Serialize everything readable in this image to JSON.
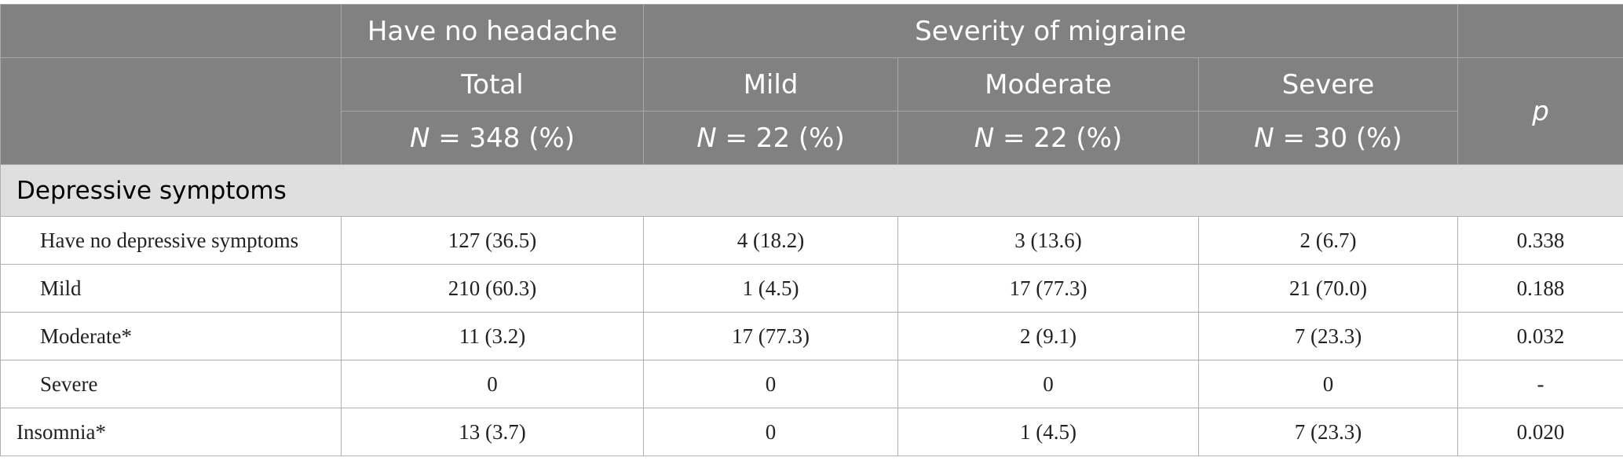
{
  "header": {
    "group_row": [
      "Have no headache",
      "Severity of migraine"
    ],
    "columns": [
      "Total",
      "Mild",
      "Moderate",
      "Severe",
      "p"
    ],
    "n_row": [
      {
        "symbol": "N",
        "text": " = 348 (%)"
      },
      {
        "symbol": "N",
        "text": " = 22 (%)"
      },
      {
        "symbol": "N",
        "text": " = 22 (%)"
      },
      {
        "symbol": "N",
        "text": " = 30 (%)"
      }
    ]
  },
  "table": {
    "section": "Depressive symptoms",
    "rows": [
      {
        "label": "Have no depressive symptoms",
        "indent": true,
        "cells": [
          "127 (36.5)",
          "4 (18.2)",
          "3 (13.6)",
          "2 (6.7)",
          "0.338"
        ]
      },
      {
        "label": "Mild",
        "indent": true,
        "cells": [
          "210 (60.3)",
          "1 (4.5)",
          "17 (77.3)",
          "21 (70.0)",
          "0.188"
        ]
      },
      {
        "label": "Moderate*",
        "indent": true,
        "cells": [
          "11 (3.2)",
          "17 (77.3)",
          "2 (9.1)",
          "7 (23.3)",
          "0.032"
        ]
      },
      {
        "label": "Severe",
        "indent": true,
        "cells": [
          "0",
          "0",
          "0",
          "0",
          "-"
        ]
      },
      {
        "label": "Insomnia*",
        "indent": false,
        "cells": [
          "13 (3.7)",
          "0",
          "1 (4.5)",
          "7 (23.3)",
          "0.020"
        ]
      }
    ]
  }
}
